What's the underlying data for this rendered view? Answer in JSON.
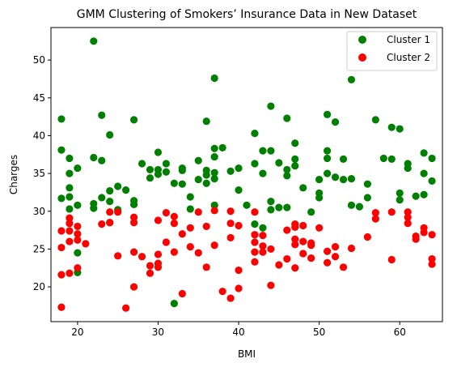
{
  "chart_data": {
    "type": "scatter",
    "title": "GMM Clustering of Smokers’ Insurance Data in New Dataset",
    "xlabel": "BMI",
    "ylabel": "Charges",
    "xlim": [
      16.7,
      65.3
    ],
    "ylim": [
      15.4,
      54.3
    ],
    "xticks": [
      20,
      30,
      40,
      50,
      60
    ],
    "yticks": [
      20,
      25,
      30,
      35,
      40,
      45,
      50
    ],
    "grid": false,
    "legend_position": "top-right",
    "series": [
      {
        "name": "Cluster 1",
        "color": "#008000",
        "points": [
          [
            18,
            42.2
          ],
          [
            18,
            38.1
          ],
          [
            18,
            31.7
          ],
          [
            19,
            37
          ],
          [
            19,
            35
          ],
          [
            19,
            33.1
          ],
          [
            19,
            31.9
          ],
          [
            19,
            30.3
          ],
          [
            20,
            35.7
          ],
          [
            20,
            30.8
          ],
          [
            20,
            24.5
          ],
          [
            20,
            21.9
          ],
          [
            22,
            52.5
          ],
          [
            22,
            37.1
          ],
          [
            22,
            31
          ],
          [
            22,
            30.4
          ],
          [
            23,
            42.7
          ],
          [
            23,
            36.7
          ],
          [
            23,
            31.8
          ],
          [
            24,
            40.1
          ],
          [
            24,
            32.7
          ],
          [
            24,
            31.3
          ],
          [
            24,
            28.5
          ],
          [
            25,
            33.3
          ],
          [
            25,
            30.2
          ],
          [
            26,
            32.8
          ],
          [
            27,
            42.1
          ],
          [
            27,
            31.4
          ],
          [
            27,
            30.9
          ],
          [
            28,
            36.3
          ],
          [
            29,
            35.5
          ],
          [
            29,
            34.4
          ],
          [
            30,
            37.8
          ],
          [
            30,
            35.5
          ],
          [
            30,
            34.9
          ],
          [
            31,
            36.3
          ],
          [
            31,
            35.2
          ],
          [
            32,
            33.7
          ],
          [
            32,
            17.8
          ],
          [
            33,
            35.7
          ],
          [
            33,
            35.4
          ],
          [
            33,
            33.6
          ],
          [
            34,
            31.9
          ],
          [
            34,
            30.3
          ],
          [
            35,
            36.7
          ],
          [
            35,
            34.2
          ],
          [
            36,
            41.9
          ],
          [
            36,
            35.4
          ],
          [
            36,
            34.8
          ],
          [
            36,
            33.7
          ],
          [
            37,
            47.6
          ],
          [
            37,
            38.3
          ],
          [
            37,
            37.2
          ],
          [
            37,
            35.1
          ],
          [
            37,
            34.3
          ],
          [
            37,
            30.8
          ],
          [
            38,
            38.4
          ],
          [
            39,
            35.3
          ],
          [
            40,
            35.7
          ],
          [
            40,
            32.8
          ],
          [
            41,
            30.8
          ],
          [
            42,
            40.3
          ],
          [
            42,
            36.3
          ],
          [
            42,
            28.3
          ],
          [
            43,
            38
          ],
          [
            43,
            35
          ],
          [
            43,
            27.8
          ],
          [
            44,
            43.9
          ],
          [
            44,
            38
          ],
          [
            44,
            31.3
          ],
          [
            44,
            30.2
          ],
          [
            45,
            36.4
          ],
          [
            45,
            30.5
          ],
          [
            46,
            42.3
          ],
          [
            46,
            35.5
          ],
          [
            46,
            34.7
          ],
          [
            46,
            30.5
          ],
          [
            47,
            39
          ],
          [
            47,
            36.9
          ],
          [
            47,
            36
          ],
          [
            48,
            33.1
          ],
          [
            49,
            29.9
          ],
          [
            50,
            34.2
          ],
          [
            50,
            32.4
          ],
          [
            50,
            31.8
          ],
          [
            51,
            42.8
          ],
          [
            51,
            38
          ],
          [
            51,
            37
          ],
          [
            51,
            35
          ],
          [
            52,
            41.8
          ],
          [
            52,
            34.5
          ],
          [
            53,
            36.9
          ],
          [
            53,
            34.2
          ],
          [
            54,
            47.4
          ],
          [
            54,
            34.3
          ],
          [
            54,
            30.8
          ],
          [
            55,
            30.6
          ],
          [
            56,
            33.6
          ],
          [
            56,
            31.8
          ],
          [
            57,
            42.1
          ],
          [
            58,
            37
          ],
          [
            59,
            41.1
          ],
          [
            59,
            36.9
          ],
          [
            60,
            40.9
          ],
          [
            60,
            32.4
          ],
          [
            60,
            31.5
          ],
          [
            61,
            36.3
          ],
          [
            61,
            35.7
          ],
          [
            62,
            32
          ],
          [
            63,
            37.7
          ],
          [
            63,
            35
          ],
          [
            63,
            32.2
          ],
          [
            64,
            37
          ],
          [
            64,
            34
          ]
        ]
      },
      {
        "name": "Cluster 2",
        "color": "#ff0000",
        "points": [
          [
            18,
            27.4
          ],
          [
            18,
            25.2
          ],
          [
            18,
            21.6
          ],
          [
            18,
            17.3
          ],
          [
            19,
            29.1
          ],
          [
            19,
            28.4
          ],
          [
            19,
            27.4
          ],
          [
            19,
            26
          ],
          [
            19,
            21.8
          ],
          [
            20,
            28
          ],
          [
            20,
            27
          ],
          [
            20,
            26.2
          ],
          [
            20,
            22.5
          ],
          [
            21,
            25.7
          ],
          [
            23,
            28.3
          ],
          [
            24,
            29.9
          ],
          [
            24,
            28.5
          ],
          [
            25,
            29.9
          ],
          [
            25,
            24.1
          ],
          [
            26,
            17.2
          ],
          [
            27,
            29.2
          ],
          [
            27,
            28.5
          ],
          [
            27,
            24.6
          ],
          [
            27,
            20
          ],
          [
            28,
            24
          ],
          [
            29,
            22.8
          ],
          [
            29,
            21.8
          ],
          [
            30,
            28.8
          ],
          [
            30,
            24.3
          ],
          [
            30,
            23.1
          ],
          [
            30,
            22.6
          ],
          [
            31,
            29.8
          ],
          [
            31,
            25.9
          ],
          [
            32,
            29.3
          ],
          [
            32,
            28.4
          ],
          [
            32,
            24.6
          ],
          [
            33,
            27
          ],
          [
            33,
            19.1
          ],
          [
            34,
            27.8
          ],
          [
            34,
            25.3
          ],
          [
            35,
            29.9
          ],
          [
            35,
            24.5
          ],
          [
            36,
            28
          ],
          [
            36,
            22.6
          ],
          [
            37,
            30.1
          ],
          [
            37,
            25.5
          ],
          [
            38,
            19.4
          ],
          [
            39,
            30
          ],
          [
            39,
            28.4
          ],
          [
            39,
            26.5
          ],
          [
            39,
            18.5
          ],
          [
            40,
            28.1
          ],
          [
            40,
            22.2
          ],
          [
            40,
            19.8
          ],
          [
            42,
            29.9
          ],
          [
            42,
            26.9
          ],
          [
            42,
            25.9
          ],
          [
            42,
            24.6
          ],
          [
            42,
            23.3
          ],
          [
            43,
            26.8
          ],
          [
            43,
            25.4
          ],
          [
            43,
            24.6
          ],
          [
            44,
            25
          ],
          [
            44,
            20.2
          ],
          [
            45,
            22.9
          ],
          [
            46,
            27.5
          ],
          [
            46,
            23.7
          ],
          [
            47,
            28.3
          ],
          [
            47,
            27.9
          ],
          [
            47,
            26.3
          ],
          [
            47,
            25.6
          ],
          [
            47,
            22.5
          ],
          [
            48,
            28.1
          ],
          [
            48,
            26
          ],
          [
            48,
            24.4
          ],
          [
            49,
            25.8
          ],
          [
            49,
            25.5
          ],
          [
            49,
            23.8
          ],
          [
            50,
            27.8
          ],
          [
            51,
            24.7
          ],
          [
            51,
            23.2
          ],
          [
            52,
            25.3
          ],
          [
            52,
            24
          ],
          [
            53,
            22.6
          ],
          [
            54,
            25.1
          ],
          [
            56,
            26.6
          ],
          [
            57,
            29.8
          ],
          [
            57,
            29
          ],
          [
            59,
            29.9
          ],
          [
            59,
            23.6
          ],
          [
            61,
            29.9
          ],
          [
            61,
            29.2
          ],
          [
            61,
            28.4
          ],
          [
            62,
            26.7
          ],
          [
            62,
            26.3
          ],
          [
            63,
            27.8
          ],
          [
            63,
            27.2
          ],
          [
            64,
            26.9
          ],
          [
            64,
            23.7
          ],
          [
            64,
            23
          ]
        ]
      }
    ]
  }
}
